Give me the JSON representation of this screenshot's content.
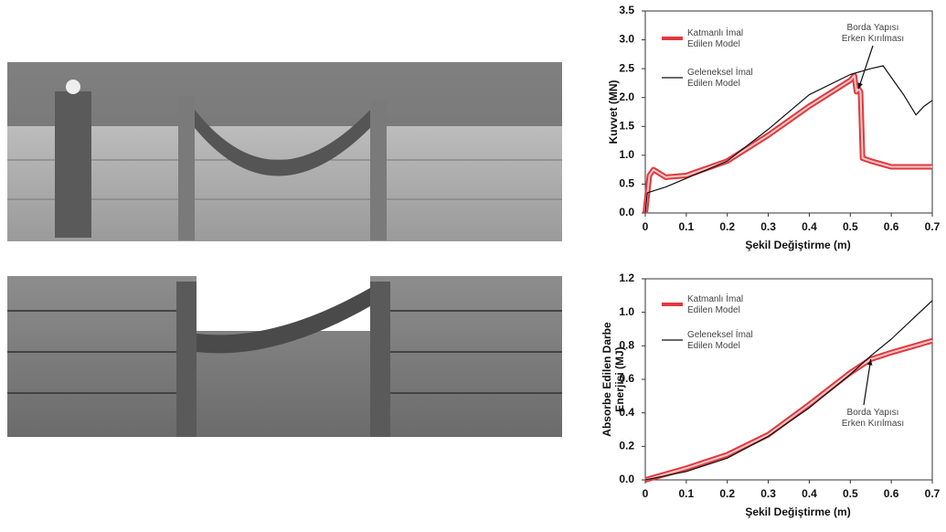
{
  "chart_data": [
    {
      "type": "line",
      "ylabel": "Kuvvet (MN)",
      "xlabel": "Şekil Değiştirme (m)",
      "annotations": [
        "Borda Yapısı Erken Kırılması"
      ],
      "xlim": [
        0,
        0.7
      ],
      "xticks": [
        0,
        0.1,
        0.2,
        0.3,
        0.4,
        0.5,
        0.6,
        0.7
      ],
      "ylim": [
        0,
        3.5
      ],
      "yticks": [
        {
          "value": 0,
          "label": "0.0"
        },
        0.5,
        {
          "value": 1,
          "label": "1.0"
        },
        1.5,
        {
          "value": 2,
          "label": "2.0"
        },
        2.5,
        {
          "value": 3,
          "label": "3.0"
        },
        3.5
      ],
      "series": [
        {
          "name": "Katmanlı İmal Edilen Model",
          "color": "#e0393e",
          "x": [
            0,
            0.01,
            0.02,
            0.05,
            0.1,
            0.2,
            0.3,
            0.4,
            0.5,
            0.51,
            0.515,
            0.52,
            0.525,
            0.53,
            0.55,
            0.6,
            0.7
          ],
          "values": [
            0,
            0.65,
            0.75,
            0.62,
            0.65,
            0.9,
            1.35,
            1.85,
            2.3,
            2.38,
            2.1,
            2.15,
            2.1,
            0.95,
            0.9,
            0.8,
            0.8
          ]
        },
        {
          "name": "Geleneksel İmal Edilen Model",
          "color": "#111111",
          "x": [
            0,
            0.005,
            0.05,
            0.1,
            0.2,
            0.3,
            0.4,
            0.5,
            0.55,
            0.58,
            0.6,
            0.63,
            0.66,
            0.68,
            0.7
          ],
          "values": [
            0,
            0.35,
            0.45,
            0.6,
            0.9,
            1.45,
            2.05,
            2.4,
            2.5,
            2.55,
            2.35,
            2.05,
            1.7,
            1.85,
            1.95
          ]
        }
      ]
    },
    {
      "type": "line",
      "ylabel": "Absorbe Edilen Darbe Enerjisi (MJ)",
      "xlabel": "Şekil Değiştirme (m)",
      "annotations": [
        "Borda Yapısı Erken Kırılması"
      ],
      "xlim": [
        0,
        0.7
      ],
      "xticks": [
        0,
        0.1,
        0.2,
        0.3,
        0.4,
        0.5,
        0.6,
        0.7
      ],
      "ylim": [
        0,
        1.2
      ],
      "yticks": [
        {
          "value": 0,
          "label": "0.0"
        },
        0.2,
        0.4,
        0.6,
        0.8,
        {
          "value": 1,
          "label": "1.0"
        },
        1.2
      ],
      "series": [
        {
          "name": "Katmanlı İmal Edilen Model",
          "color": "#e0393e",
          "x": [
            0,
            0.1,
            0.2,
            0.3,
            0.4,
            0.5,
            0.55,
            0.6,
            0.7
          ],
          "values": [
            0,
            0.07,
            0.15,
            0.27,
            0.45,
            0.64,
            0.72,
            0.76,
            0.83
          ]
        },
        {
          "name": "Geleneksel İmal Edilen Model",
          "color": "#111111",
          "x": [
            0,
            0.1,
            0.2,
            0.3,
            0.4,
            0.5,
            0.55,
            0.6,
            0.7
          ],
          "values": [
            0,
            0.05,
            0.13,
            0.26,
            0.43,
            0.63,
            0.74,
            0.84,
            1.07
          ]
        }
      ]
    }
  ]
}
